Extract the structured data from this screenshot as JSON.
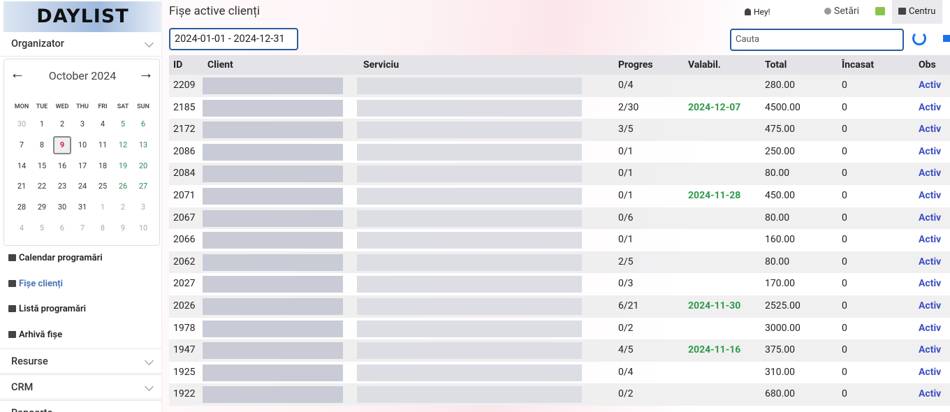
{
  "sidebar": {
    "logo": "DAYLIST",
    "organizer": "Organizator",
    "calendar": {
      "month": "October 2024",
      "today": 9,
      "weekdays": [
        "MON",
        "TUE",
        "WED",
        "THU",
        "FRI",
        "SAT",
        "SUN"
      ],
      "weeks": [
        [
          30,
          1,
          2,
          3,
          4,
          5,
          6
        ],
        [
          7,
          8,
          9,
          10,
          11,
          12,
          13
        ],
        [
          14,
          15,
          16,
          17,
          18,
          19,
          20
        ],
        [
          21,
          22,
          23,
          24,
          25,
          26,
          27
        ],
        [
          28,
          29,
          30,
          31,
          1,
          2,
          3
        ],
        [
          4,
          5,
          6,
          7,
          8,
          9,
          10
        ]
      ]
    },
    "menu": [
      "Calendar programări",
      "Fișe clienți",
      "Listă programări",
      "Arhivă fișe"
    ],
    "sections": [
      "Resurse",
      "CRM",
      "Rapoarte"
    ]
  },
  "header": {
    "title": "Fișe active clienți",
    "user": "Hey!",
    "settings": "Setări",
    "center": "Centru",
    "date_range": "2024-01-01 - 2024-12-31",
    "search_placeholder": "Cauta"
  },
  "table": {
    "columns": [
      "ID",
      "Client",
      "Serviciu",
      "Progres",
      "Valabil.",
      "Total",
      "Încasat",
      "Obs"
    ],
    "rows": [
      {
        "id": "2209",
        "progress": "0/4",
        "valid": null,
        "total": "280.00",
        "paid": "0",
        "status": "Activ"
      },
      {
        "id": "2185",
        "progress": "2/30",
        "valid": "2024-12-07",
        "total": "4500.00",
        "paid": "0",
        "status": "Activ"
      },
      {
        "id": "2172",
        "progress": "3/5",
        "valid": null,
        "total": "475.00",
        "paid": "0",
        "status": "Activ"
      },
      {
        "id": "2086",
        "progress": "0/1",
        "valid": null,
        "total": "250.00",
        "paid": "0",
        "status": "Activ"
      },
      {
        "id": "2084",
        "progress": "0/1",
        "valid": null,
        "total": "80.00",
        "paid": "0",
        "status": "Activ"
      },
      {
        "id": "2071",
        "progress": "0/1",
        "valid": "2024-11-28",
        "total": "450.00",
        "paid": "0",
        "status": "Activ"
      },
      {
        "id": "2067",
        "progress": "0/6",
        "valid": null,
        "total": "80.00",
        "paid": "0",
        "status": "Activ"
      },
      {
        "id": "2066",
        "progress": "0/1",
        "valid": null,
        "total": "160.00",
        "paid": "0",
        "status": "Activ"
      },
      {
        "id": "2062",
        "progress": "2/5",
        "valid": null,
        "total": "80.00",
        "paid": "0",
        "status": "Activ"
      },
      {
        "id": "2027",
        "progress": "0/3",
        "valid": null,
        "total": "170.00",
        "paid": "0",
        "status": "Activ"
      },
      {
        "id": "2026",
        "progress": "6/21",
        "valid": "2024-11-30",
        "total": "2525.00",
        "paid": "0",
        "status": "Activ"
      },
      {
        "id": "1978",
        "progress": "0/2",
        "valid": null,
        "total": "3000.00",
        "paid": "0",
        "status": "Activ"
      },
      {
        "id": "1947",
        "progress": "4/5",
        "valid": "2024-11-16",
        "total": "375.00",
        "paid": "0",
        "status": "Activ"
      },
      {
        "id": "1925",
        "progress": "0/4",
        "valid": null,
        "total": "310.00",
        "paid": "0",
        "status": "Activ"
      },
      {
        "id": "1922",
        "progress": "0/2",
        "valid": null,
        "total": "680.00",
        "paid": "0",
        "status": "Activ"
      }
    ]
  }
}
